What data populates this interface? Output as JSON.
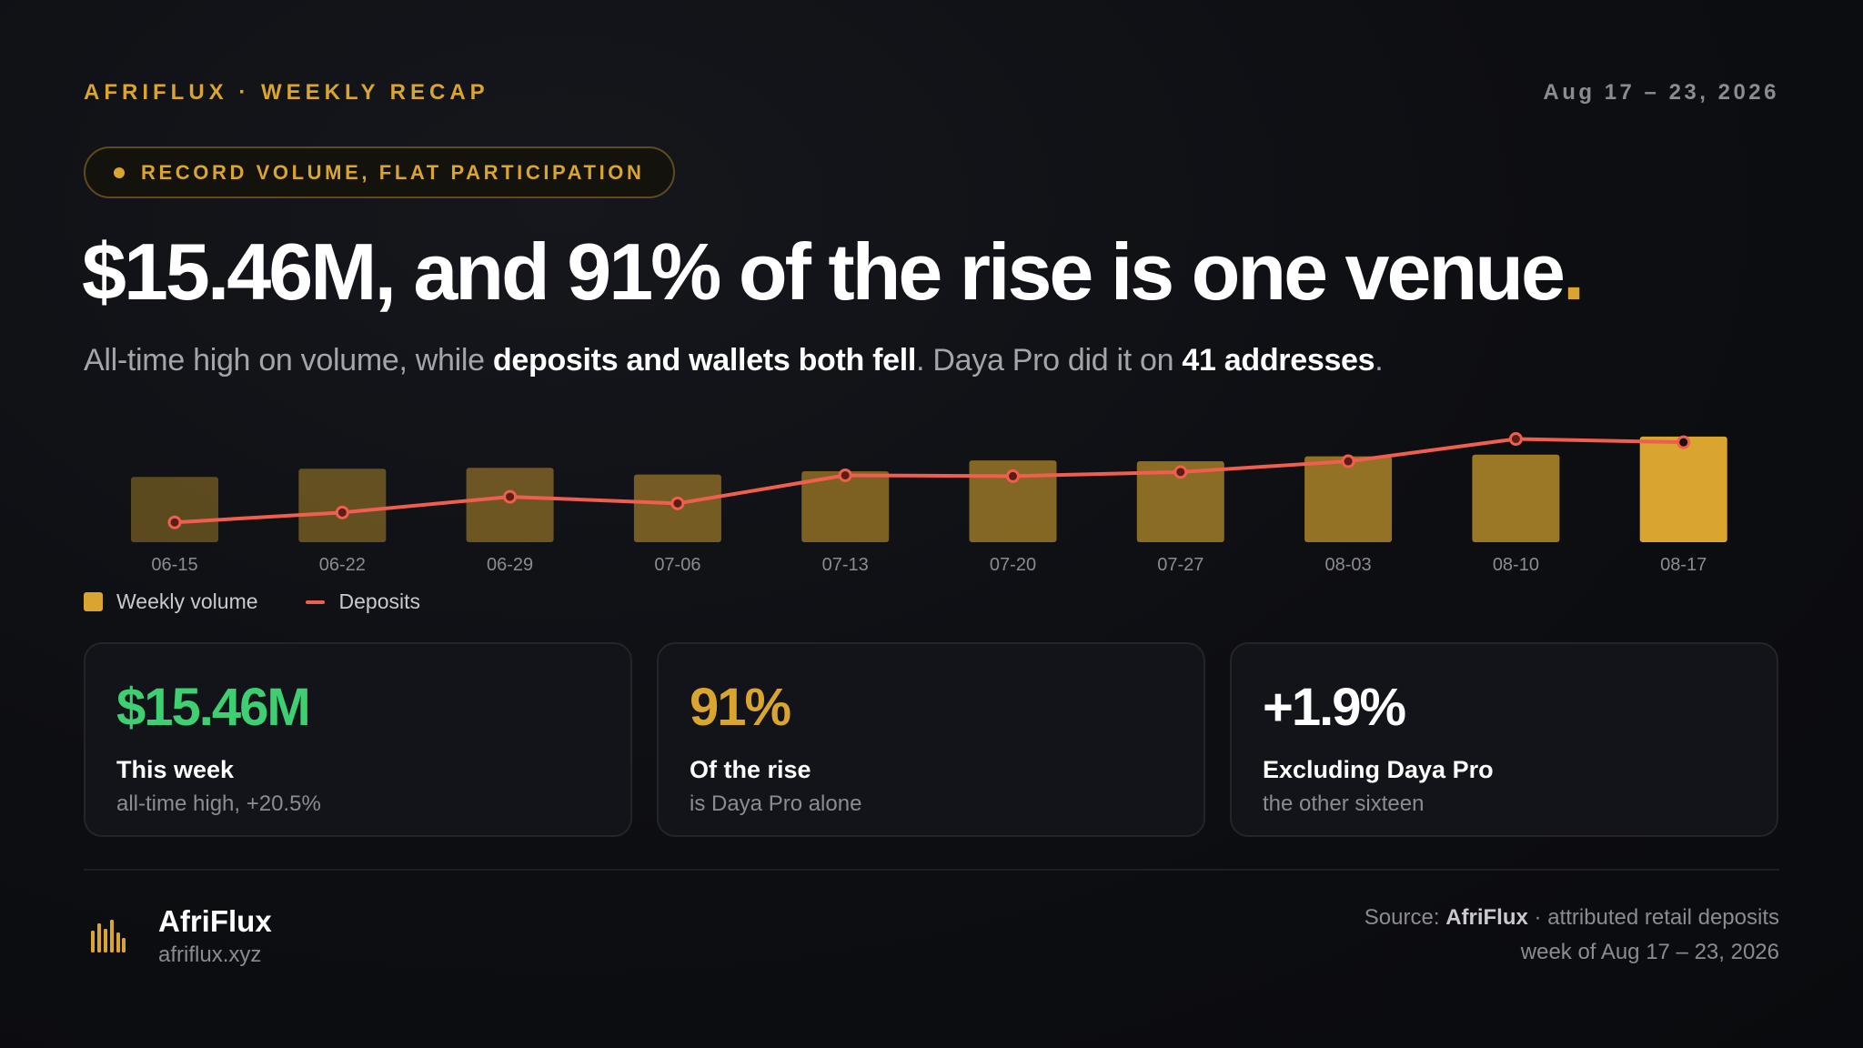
{
  "header": {
    "kicker": "AFRIFLUX · WEEKLY RECAP",
    "date": "Aug 17 – 23, 2026",
    "pill": "RECORD VOLUME, FLAT PARTICIPATION"
  },
  "headline": {
    "text": "$15.46M, and 91% of the rise is one venue",
    "accent": "."
  },
  "subhead": {
    "part1": "All-time high on volume, while ",
    "bold1": "deposits and wallets both fell",
    "part2": ". Daya Pro did it on ",
    "bold2": "41 addresses",
    "part3": "."
  },
  "chart_data": {
    "type": "bar",
    "categories": [
      "06-15",
      "06-22",
      "06-29",
      "07-06",
      "07-13",
      "07-20",
      "07-27",
      "08-03",
      "08-10",
      "08-17"
    ],
    "series": [
      {
        "name": "Weekly volume",
        "kind": "bar",
        "values": [
          0.79,
          0.89,
          0.9,
          0.82,
          0.86,
          0.99,
          0.98,
          1.04,
          1.06,
          1.28
        ],
        "color": "#d9a52f"
      },
      {
        "name": "Deposits",
        "kind": "line",
        "values": [
          0.24,
          0.36,
          0.55,
          0.47,
          0.81,
          0.8,
          0.85,
          0.98,
          1.25,
          1.21
        ],
        "color": "#ef5e4e"
      }
    ],
    "title": "",
    "xlabel": "",
    "ylabel": "",
    "ylim": [
      0,
      1.3
    ],
    "grid": false,
    "legend": "bottom-left"
  },
  "legend": {
    "bar": "Weekly volume",
    "line": "Deposits"
  },
  "cards": [
    {
      "value": "$15.46M",
      "label": "This week",
      "note": "all-time high, +20.5%",
      "color": "#3ecf72"
    },
    {
      "value": "91%",
      "label": "Of the rise",
      "note": "is Daya Pro alone",
      "color": "#d9a52f"
    },
    {
      "value": "+1.9%",
      "label": "Excluding Daya Pro",
      "note": "the other sixteen",
      "color": "#ffffff"
    }
  ],
  "footer": {
    "brand": "AfriFlux",
    "url": "afriflux.xyz",
    "source_prefix": "Source: ",
    "source_name": "AfriFlux",
    "source_suffix": " · attributed retail deposits",
    "source_line2": "week of Aug 17 – 23, 2026",
    "brand_icon": "bar-chart-icon"
  }
}
